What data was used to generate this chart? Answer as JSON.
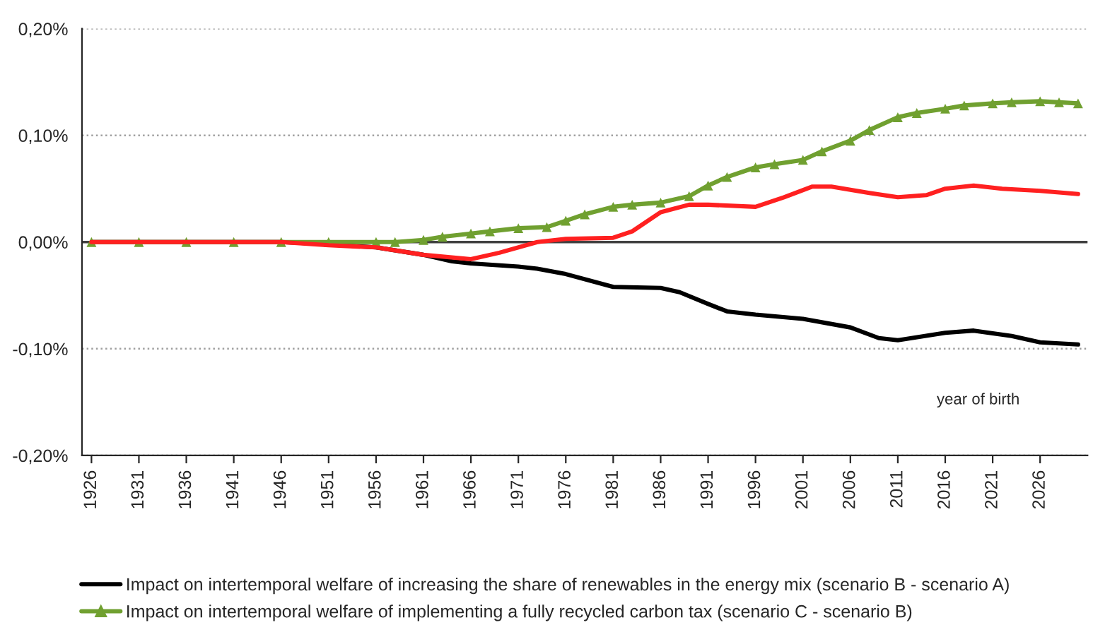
{
  "chart_data": {
    "type": "line",
    "annotations": [
      "year of birth"
    ],
    "xlim": [
      1925,
      2031
    ],
    "xticks": [
      1926,
      1931,
      1936,
      1941,
      1946,
      1951,
      1956,
      1961,
      1966,
      1971,
      1976,
      1981,
      1986,
      1991,
      1996,
      2001,
      2006,
      2011,
      2016,
      2021,
      2026
    ],
    "ylim": [
      -0.2,
      0.2
    ],
    "yticks": [
      {
        "value": -0.2,
        "label": "-0,20%"
      },
      {
        "value": -0.1,
        "label": "-0,10%"
      },
      {
        "value": 0,
        "label": "0,00%"
      },
      {
        "value": 0.1,
        "label": "0,10%"
      },
      {
        "value": 0.2,
        "label": "0,20%"
      }
    ],
    "grid": "y",
    "legend": "bottom",
    "ref_lines": [
      {
        "axis": "y",
        "value": 0,
        "color": "#404040"
      }
    ],
    "series": [
      {
        "name": "Impact on intertemporal welfare of increasing the share of renewables in the energy mix (scenario B - scenario A)",
        "color": "#000000",
        "marker": "none",
        "x": [
          1926,
          1936,
          1946,
          1951,
          1956,
          1961,
          1964,
          1966,
          1971,
          1973,
          1976,
          1981,
          1986,
          1988,
          1991,
          1993,
          1996,
          2001,
          2006,
          2009,
          2011,
          2016,
          2019,
          2023,
          2026,
          2030
        ],
        "values": [
          0,
          0,
          0,
          -0.002,
          -0.005,
          -0.012,
          -0.018,
          -0.02,
          -0.023,
          -0.025,
          -0.03,
          -0.042,
          -0.043,
          -0.047,
          -0.058,
          -0.065,
          -0.068,
          -0.072,
          -0.08,
          -0.09,
          -0.092,
          -0.085,
          -0.083,
          -0.088,
          -0.094,
          -0.096
        ]
      },
      {
        "name": "Impact on intertemporal welfare of implementing a fully recycled carbon tax (scenario C - scenario B)",
        "color": "#70a030",
        "marker": "triangle",
        "x": [
          1926,
          1931,
          1936,
          1941,
          1946,
          1951,
          1956,
          1958,
          1961,
          1963,
          1966,
          1968,
          1971,
          1974,
          1976,
          1978,
          1981,
          1983,
          1986,
          1989,
          1991,
          1993,
          1996,
          1998,
          2001,
          2003,
          2006,
          2008,
          2011,
          2013,
          2016,
          2018,
          2021,
          2023,
          2026,
          2028,
          2030
        ],
        "values": [
          0,
          0,
          0,
          0,
          0,
          0,
          0,
          0,
          0.002,
          0.005,
          0.008,
          0.01,
          0.013,
          0.014,
          0.02,
          0.026,
          0.033,
          0.035,
          0.037,
          0.043,
          0.053,
          0.061,
          0.07,
          0.073,
          0.077,
          0.085,
          0.095,
          0.105,
          0.117,
          0.121,
          0.125,
          0.128,
          0.13,
          0.131,
          0.132,
          0.131,
          0.13
        ]
      },
      {
        "color": "#ff2020",
        "marker": "none",
        "x": [
          1926,
          1936,
          1946,
          1951,
          1956,
          1961,
          1966,
          1969,
          1973,
          1976,
          1981,
          1983,
          1986,
          1989,
          1991,
          1996,
          1999,
          2002,
          2004,
          2008,
          2011,
          2014,
          2016,
          2019,
          2022,
          2026,
          2030
        ],
        "values": [
          0,
          0,
          0,
          -0.003,
          -0.005,
          -0.012,
          -0.016,
          -0.01,
          0.0,
          0.003,
          0.004,
          0.01,
          0.028,
          0.035,
          0.035,
          0.033,
          0.042,
          0.052,
          0.052,
          0.046,
          0.042,
          0.044,
          0.05,
          0.053,
          0.05,
          0.048,
          0.045
        ]
      }
    ]
  }
}
